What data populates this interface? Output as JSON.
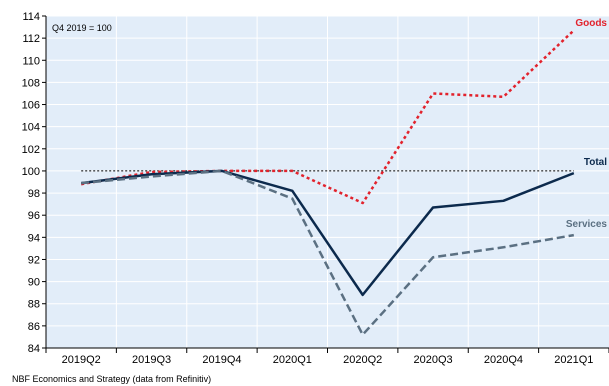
{
  "chart_data": {
    "type": "line",
    "categories": [
      "2019Q2",
      "2019Q3",
      "2019Q4",
      "2020Q1",
      "2020Q2",
      "2020Q3",
      "2020Q4",
      "2021Q1"
    ],
    "series": [
      {
        "name": "Goods",
        "values": [
          98.8,
          99.9,
          100.0,
          100.0,
          97.1,
          107.0,
          106.7,
          112.7
        ],
        "color": "#e2222c",
        "style": "dotted"
      },
      {
        "name": "Total",
        "values": [
          98.9,
          99.7,
          100.0,
          98.2,
          88.8,
          96.7,
          97.3,
          99.8
        ],
        "color": "#0c2a4d",
        "style": "solid"
      },
      {
        "name": "Services",
        "values": [
          98.9,
          99.5,
          100.0,
          97.5,
          85.2,
          92.2,
          93.1,
          94.2
        ],
        "color": "#5b7082",
        "style": "dashed"
      }
    ],
    "ylim": [
      84,
      114
    ],
    "yticks": [
      84,
      86,
      88,
      90,
      92,
      94,
      96,
      98,
      100,
      102,
      104,
      106,
      108,
      110,
      112,
      114
    ],
    "reference_line": 100,
    "grid": true,
    "background": "#e2edf9",
    "annotation": "Q4 2019 = 100",
    "source": "NBF Economics and Strategy (data from Refinitiv)"
  }
}
